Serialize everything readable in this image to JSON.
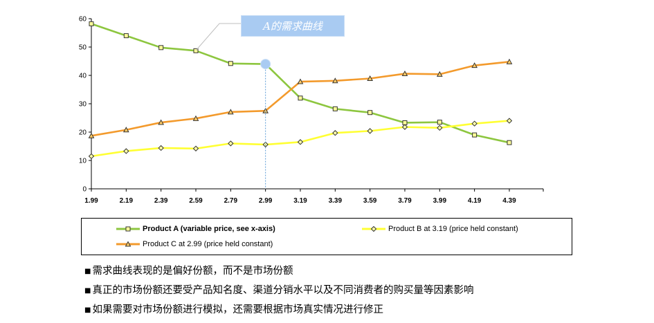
{
  "chart_data": {
    "type": "line",
    "categories": [
      "1.99",
      "2.19",
      "2.39",
      "2.59",
      "2.79",
      "2.99",
      "3.19",
      "3.39",
      "3.59",
      "3.79",
      "3.99",
      "4.19",
      "4.39"
    ],
    "ylim": [
      0,
      60
    ],
    "yticks": [
      0,
      10,
      20,
      30,
      40,
      50,
      60
    ],
    "grid": false,
    "legend_placement": "bottom",
    "series": [
      {
        "name": "Product A (variable price, see x-axis)",
        "color": "#8dc63f",
        "marker": "square",
        "values": [
          58.2,
          54.0,
          49.8,
          48.7,
          44.2,
          44.0,
          32.0,
          28.2,
          26.9,
          23.3,
          23.5,
          19.0,
          16.3
        ]
      },
      {
        "name": "Product B at 3.19 (price held constant)",
        "color": "#ffff33",
        "marker": "diamond",
        "values": [
          11.5,
          13.3,
          14.4,
          14.2,
          16.0,
          15.6,
          16.5,
          19.7,
          20.4,
          21.8,
          21.5,
          23.0,
          24.0
        ]
      },
      {
        "name": "Product C at 2.99 (price held constant)",
        "color": "#f39a2c",
        "marker": "triangle",
        "values": [
          18.7,
          20.8,
          23.4,
          24.8,
          27.1,
          27.5,
          37.8,
          38.1,
          38.9,
          40.6,
          40.4,
          43.5,
          44.8
        ]
      }
    ],
    "annotation": {
      "text": "A的需求曲线",
      "category": "2.99",
      "value": 44.0,
      "color": "#a9cbf2"
    }
  },
  "notes": [
    "需求曲线表现的是偏好份额，而不是市场份额",
    "真正的市场份额还要受产品知名度、渠道分销水平以及不同消费者的购买量等因素影响",
    "如果需要对市场份额进行模拟，还需要根据市场真实情况进行修正"
  ],
  "bullet_glyph": "■"
}
